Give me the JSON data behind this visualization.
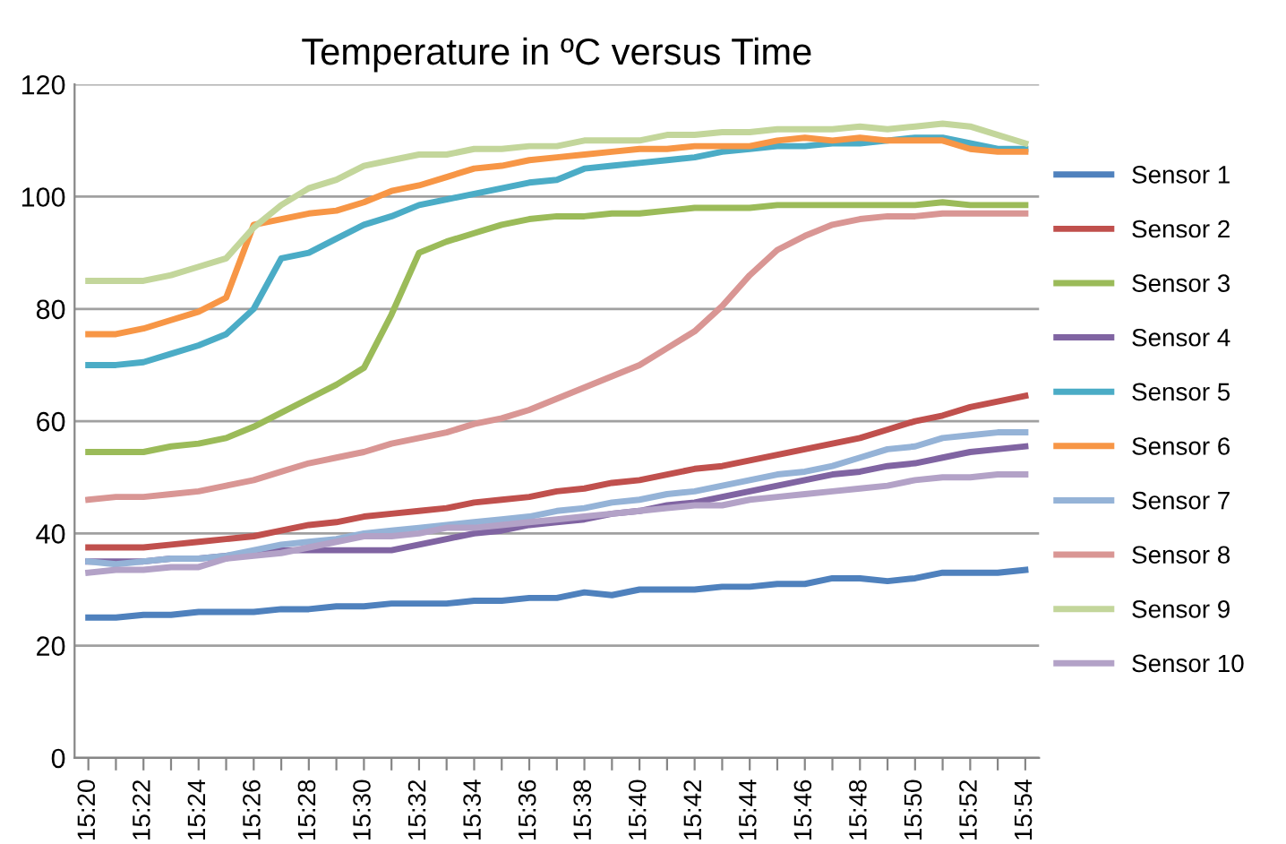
{
  "chart_data": {
    "type": "line",
    "title": "Temperature in ºC versus Time",
    "categories": [
      "15:20",
      null,
      "15:22",
      null,
      "15:24",
      null,
      "15:26",
      null,
      "15:28",
      null,
      "15:30",
      null,
      "15:32",
      null,
      "15:34",
      null,
      "15:36",
      null,
      "15:38",
      null,
      "15:40",
      null,
      "15:42",
      null,
      "15:44",
      null,
      "15:46",
      null,
      "15:48",
      null,
      "15:50",
      null,
      "15:52",
      null,
      "15:54"
    ],
    "ylim": [
      0,
      120
    ],
    "yticks": [
      0,
      20,
      40,
      60,
      80,
      100,
      120
    ],
    "grid": "y",
    "legend": "right",
    "marker": "none",
    "line_style": "solid",
    "series": [
      {
        "name": "Sensor 1",
        "color": "#4f81bd",
        "values": [
          25,
          25,
          25.5,
          25.5,
          26,
          26,
          26,
          26.5,
          26.5,
          27,
          27,
          27.5,
          27.5,
          27.5,
          28,
          28,
          28.5,
          28.5,
          29.5,
          29,
          30,
          30,
          30,
          30.5,
          30.5,
          31,
          31,
          32,
          32,
          31.5,
          32,
          33,
          33,
          33,
          33.5
        ]
      },
      {
        "name": "Sensor 2",
        "color": "#c0504d",
        "values": [
          37.5,
          37.5,
          37.5,
          38,
          38.5,
          39,
          39.5,
          40.5,
          41.5,
          42,
          43,
          43.5,
          44,
          44.5,
          45.5,
          46,
          46.5,
          47.5,
          48,
          49,
          49.5,
          50.5,
          51.5,
          52,
          53,
          54,
          55,
          56,
          57,
          58.5,
          60,
          61,
          62.5,
          63.5,
          64.5
        ]
      },
      {
        "name": "Sensor 3",
        "color": "#9bbb59",
        "values": [
          54.5,
          54.5,
          54.5,
          55.5,
          56,
          57,
          59,
          61.5,
          64,
          66.5,
          69.5,
          79,
          90,
          92,
          93.5,
          95,
          96,
          96.5,
          96.5,
          97,
          97,
          97.5,
          98,
          98,
          98,
          98.5,
          98.5,
          98.5,
          98.5,
          98.5,
          98.5,
          99,
          98.5,
          98.5,
          98.5
        ]
      },
      {
        "name": "Sensor 4",
        "color": "#8064a2",
        "values": [
          35,
          35,
          35,
          35.5,
          35.5,
          36,
          36.5,
          37,
          37,
          37,
          37,
          37,
          38,
          39,
          40,
          40.5,
          41.5,
          42,
          42.5,
          43.5,
          44,
          45,
          45.5,
          46.5,
          47.5,
          48.5,
          49.5,
          50.5,
          51,
          52,
          52.5,
          53.5,
          54.5,
          55,
          55.5
        ]
      },
      {
        "name": "Sensor 5",
        "color": "#4bacc6",
        "values": [
          70,
          70,
          70.5,
          72,
          73.5,
          75.5,
          80,
          89,
          90,
          92.5,
          95,
          96.5,
          98.5,
          99.5,
          100.5,
          101.5,
          102.5,
          103,
          105,
          105.5,
          106,
          106.5,
          107,
          108,
          108.5,
          109,
          109,
          109.5,
          109.5,
          110,
          110.5,
          110.5,
          109.5,
          108.5,
          108.5
        ]
      },
      {
        "name": "Sensor 6",
        "color": "#f79646",
        "values": [
          75.5,
          75.5,
          76.5,
          78,
          79.5,
          82,
          95,
          96,
          97,
          97.5,
          99,
          101,
          102,
          103.5,
          105,
          105.5,
          106.5,
          107,
          107.5,
          108,
          108.5,
          108.5,
          109,
          109,
          109,
          110,
          110.5,
          110,
          110.5,
          110,
          110,
          110,
          108.5,
          108,
          108
        ]
      },
      {
        "name": "Sensor 7",
        "color": "#95b3d7",
        "values": [
          35,
          34.5,
          35,
          35.5,
          35.5,
          36,
          37,
          38,
          38.5,
          39,
          40,
          40.5,
          41,
          41.5,
          42,
          42.5,
          43,
          44,
          44.5,
          45.5,
          46,
          47,
          47.5,
          48.5,
          49.5,
          50.5,
          51,
          52,
          53.5,
          55,
          55.5,
          57,
          57.5,
          58,
          58
        ]
      },
      {
        "name": "Sensor 8",
        "color": "#d99694",
        "values": [
          46,
          46.5,
          46.5,
          47,
          47.5,
          48.5,
          49.5,
          51,
          52.5,
          53.5,
          54.5,
          56,
          57,
          58,
          59.5,
          60.5,
          62,
          64,
          66,
          68,
          70,
          73,
          76,
          80.5,
          86,
          90.5,
          93,
          95,
          96,
          96.5,
          96.5,
          97,
          97,
          97,
          97
        ]
      },
      {
        "name": "Sensor 9",
        "color": "#c3d69b",
        "values": [
          85,
          85,
          85,
          86,
          87.5,
          89,
          94.5,
          98.5,
          101.5,
          103,
          105.5,
          106.5,
          107.5,
          107.5,
          108.5,
          108.5,
          109,
          109,
          110,
          110,
          110,
          111,
          111,
          111.5,
          111.5,
          112,
          112,
          112,
          112.5,
          112,
          112.5,
          113,
          112.5,
          111,
          109.5
        ]
      },
      {
        "name": "Sensor 10",
        "color": "#b3a2c7",
        "values": [
          33,
          33.5,
          33.5,
          34,
          34,
          35.5,
          36,
          36.5,
          37.5,
          38.5,
          39.5,
          39.5,
          40,
          41,
          41,
          41.5,
          42,
          42.5,
          43,
          43.5,
          44,
          44.5,
          45,
          45,
          46,
          46.5,
          47,
          47.5,
          48,
          48.5,
          49.5,
          50,
          50,
          50.5,
          50.5
        ]
      }
    ]
  }
}
